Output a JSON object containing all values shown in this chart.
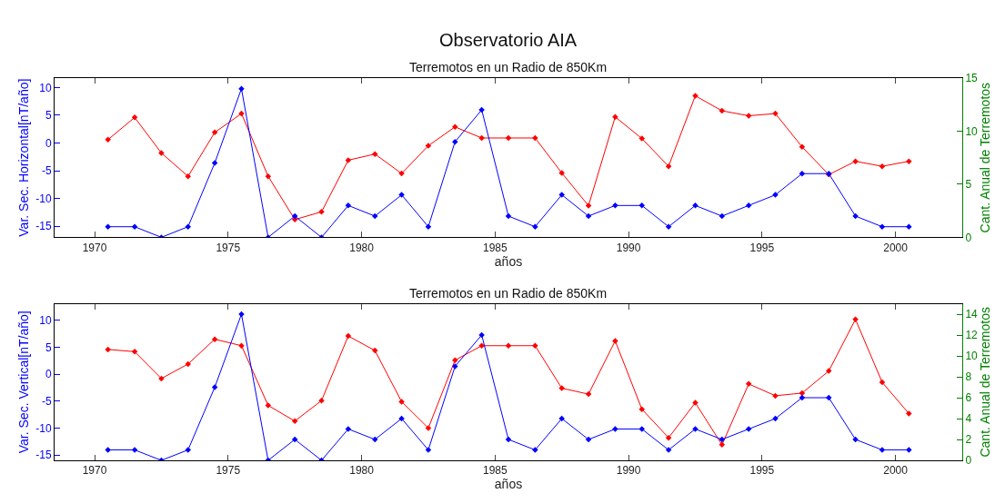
{
  "chart_data": [
    {
      "type": "line",
      "title": "Observatorio AIA",
      "subtitle": "Terremotos en un Radio de 850Km",
      "xlabel": "años",
      "ylabel": "Var. Sec. Horizontal[nT/año]",
      "y2label": "Cant. Anual de Terremotos",
      "x": [
        1970.5,
        1971.5,
        1972.5,
        1973.5,
        1974.5,
        1975.5,
        1976.5,
        1977.5,
        1978.5,
        1979.5,
        1980.5,
        1981.5,
        1982.5,
        1983.5,
        1984.5,
        1985.5,
        1986.5,
        1987.5,
        1988.5,
        1989.5,
        1990.5,
        1991.5,
        1992.5,
        1993.5,
        1994.5,
        1995.5,
        1996.5,
        1997.5,
        1998.5,
        1999.5,
        2000.5
      ],
      "xlim": [
        1968.5,
        2002.5
      ],
      "xticks": [
        1970,
        1975,
        1980,
        1985,
        1990,
        1995,
        2000
      ],
      "ylim": [
        -17,
        11.7
      ],
      "yticks": [
        -15,
        -10,
        -5,
        0,
        5,
        10
      ],
      "y2lim": [
        0,
        15
      ],
      "y2ticks": [
        0,
        5,
        10,
        15
      ],
      "marker": "diamond",
      "series": [
        {
          "color": "#ff0000",
          "values": [
            0.6,
            4.6,
            -1.8,
            -6.0,
            1.9,
            5.3,
            -6.0,
            -13.8,
            -12.4,
            -3.1,
            -2.0,
            -5.5,
            -0.5,
            2.9,
            0.9,
            0.9,
            0.9,
            -5.4,
            -11.3,
            4.7,
            0.8,
            -4.2,
            8.5,
            5.8,
            4.9,
            5.3,
            -0.7,
            -5.7,
            -3.3,
            -4.2,
            -3.3
          ]
        },
        {
          "color": "#0000ff",
          "axis": "y2",
          "values": [
            1,
            1,
            0,
            1,
            7,
            14,
            0,
            2,
            0,
            3,
            2,
            4,
            1,
            9,
            12,
            2,
            1,
            4,
            2,
            3,
            3,
            1,
            3,
            2,
            3,
            4,
            6,
            6,
            2,
            1,
            1
          ]
        }
      ]
    },
    {
      "type": "line",
      "title": "Terremotos en un Radio de 850Km",
      "xlabel": "años",
      "ylabel": "Var. Sec. Vertical[nT/año]",
      "y2label": "Cant. Anual de Terremotos",
      "x": [
        1970.5,
        1971.5,
        1972.5,
        1973.5,
        1974.5,
        1975.5,
        1976.5,
        1977.5,
        1978.5,
        1979.5,
        1980.5,
        1981.5,
        1982.5,
        1983.5,
        1984.5,
        1985.5,
        1986.5,
        1987.5,
        1988.5,
        1989.5,
        1990.5,
        1991.5,
        1992.5,
        1993.5,
        1994.5,
        1995.5,
        1996.5,
        1997.5,
        1998.5,
        1999.5,
        2000.5
      ],
      "xlim": [
        1968.5,
        2002.5
      ],
      "xticks": [
        1970,
        1975,
        1980,
        1985,
        1990,
        1995,
        2000
      ],
      "ylim": [
        -16,
        13.1
      ],
      "yticks": [
        -15,
        -10,
        -5,
        0,
        5,
        10
      ],
      "y2lim": [
        0,
        15
      ],
      "y2ticks": [
        0,
        2,
        4,
        6,
        8,
        10,
        12,
        14
      ],
      "marker": "diamond",
      "series": [
        {
          "color": "#ff0000",
          "values": [
            4.6,
            4.2,
            -0.8,
            1.9,
            6.5,
            5.3,
            -5.8,
            -8.7,
            -4.9,
            7.1,
            4.4,
            -5.1,
            -10.0,
            2.6,
            5.3,
            5.3,
            5.3,
            -2.6,
            -3.7,
            6.2,
            -6.5,
            -11.8,
            -5.3,
            -13.1,
            -1.8,
            -4.0,
            -3.5,
            0.6,
            10.2,
            -1.5,
            -7.3
          ]
        },
        {
          "color": "#0000ff",
          "axis": "y2",
          "values": [
            1,
            1,
            0,
            1,
            7,
            14,
            0,
            2,
            0,
            3,
            2,
            4,
            1,
            9,
            12,
            2,
            1,
            4,
            2,
            3,
            3,
            1,
            3,
            2,
            3,
            4,
            6,
            6,
            2,
            1,
            1
          ]
        }
      ]
    }
  ]
}
